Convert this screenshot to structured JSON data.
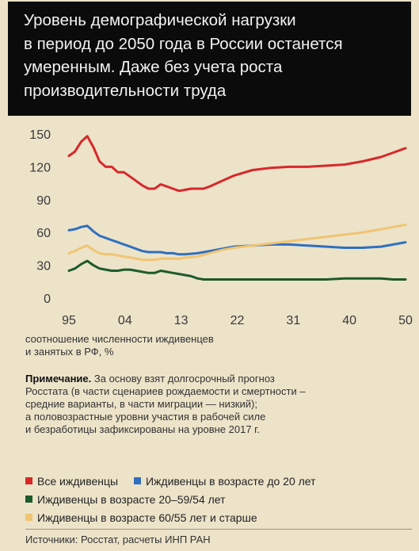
{
  "header": {
    "title_lines": [
      "Уровень демографической нагрузки",
      "в период до 2050 года в России останется",
      "умеренным. Даже без учета роста",
      "производительности труда"
    ]
  },
  "chart_data": {
    "type": "line",
    "x_tick_labels": [
      "95",
      "04",
      "13",
      "22",
      "31",
      "40",
      "50"
    ],
    "y_ticks": [
      0,
      30,
      60,
      90,
      120,
      150
    ],
    "xlim": [
      1995,
      2050
    ],
    "ylim": [
      0,
      150
    ],
    "grid": false,
    "series": [
      {
        "name": "Все иждивенцы",
        "color": "#d8282a",
        "x": [
          1995,
          1996,
          1997,
          1998,
          1999,
          2000,
          2001,
          2002,
          2003,
          2004,
          2005,
          2006,
          2007,
          2008,
          2009,
          2010,
          2011,
          2012,
          2013,
          2014,
          2015,
          2016,
          2017,
          2018,
          2020,
          2022,
          2025,
          2028,
          2031,
          2034,
          2037,
          2040,
          2043,
          2046,
          2048,
          2050
        ],
        "values": [
          130,
          134,
          143,
          148,
          138,
          125,
          120,
          120,
          115,
          115,
          111,
          107,
          103,
          100,
          100,
          104,
          102,
          100,
          98,
          99,
          100,
          100,
          100,
          102,
          107,
          112,
          117,
          119,
          120,
          120,
          121,
          122,
          125,
          129,
          133,
          137
        ]
      },
      {
        "name": "Иждивенцы в возрасте до 20 лет",
        "color": "#2f6fc0",
        "x": [
          1995,
          1996,
          1997,
          1998,
          1999,
          2000,
          2001,
          2002,
          2003,
          2004,
          2005,
          2006,
          2007,
          2008,
          2009,
          2010,
          2011,
          2012,
          2013,
          2014,
          2016,
          2018,
          2020,
          2022,
          2025,
          2028,
          2031,
          2034,
          2037,
          2040,
          2043,
          2046,
          2048,
          2050
        ],
        "values": [
          62,
          63,
          65,
          66,
          61,
          57,
          55,
          53,
          51,
          49,
          47,
          45,
          43,
          42,
          42,
          42,
          41,
          41,
          40,
          40,
          41,
          43,
          45,
          47,
          48,
          49,
          49,
          48,
          47,
          46,
          46,
          47,
          49,
          51
        ]
      },
      {
        "name": "Иждивенцы в возрасте 20–59/54 лет",
        "color": "#1d5a2c",
        "x": [
          1995,
          1996,
          1997,
          1998,
          1999,
          2000,
          2001,
          2002,
          2003,
          2004,
          2005,
          2006,
          2007,
          2008,
          2009,
          2010,
          2011,
          2012,
          2013,
          2014,
          2015,
          2016,
          2017,
          2018,
          2020,
          2022,
          2025,
          2028,
          2031,
          2034,
          2037,
          2040,
          2043,
          2046,
          2048,
          2050
        ],
        "values": [
          25,
          27,
          31,
          34,
          30,
          27,
          26,
          25,
          25,
          26,
          26,
          25,
          24,
          23,
          23,
          25,
          24,
          23,
          22,
          21,
          20,
          18,
          17,
          17,
          17,
          17,
          17,
          17,
          17,
          17,
          17,
          18,
          18,
          18,
          17,
          17
        ]
      },
      {
        "name": "Иждивенцы в возрасте 60/55 лет и старше",
        "color": "#f0c472",
        "x": [
          1995,
          1996,
          1997,
          1998,
          1999,
          2000,
          2001,
          2002,
          2003,
          2004,
          2005,
          2006,
          2007,
          2008,
          2009,
          2010,
          2011,
          2012,
          2013,
          2014,
          2016,
          2018,
          2020,
          2022,
          2025,
          2028,
          2031,
          2034,
          2037,
          2040,
          2043,
          2046,
          2048,
          2050
        ],
        "values": [
          41,
          43,
          46,
          48,
          44,
          41,
          40,
          40,
          39,
          38,
          37,
          36,
          35,
          35,
          35,
          36,
          36,
          36,
          36,
          37,
          38,
          41,
          44,
          46,
          48,
          50,
          52,
          54,
          56,
          58,
          60,
          63,
          65,
          67
        ]
      }
    ]
  },
  "caption": {
    "lines": [
      "соотношение численности иждивенцев",
      "и занятых в РФ, %"
    ]
  },
  "note": {
    "label": "Примечание.",
    "text_first": " За основу взят долгосрочный прогноз",
    "lines": [
      "Росстата (в части сценариев рождаемости и смертности –",
      "средние варианты, в части миграции — низкий);",
      "а половозрастные уровни участия в рабочей силе",
      "и безработицы зафиксированы на уровне 2017 г."
    ]
  },
  "legend": {
    "items": [
      {
        "label": "Все иждивенцы",
        "color": "#d8282a"
      },
      {
        "label": "Иждивенцы в возрасте до 20 лет",
        "color": "#2f6fc0"
      },
      {
        "label": "Иждивенцы в возрасте 20–59/54 лет",
        "color": "#1d5a2c"
      },
      {
        "label": "Иждивенцы в возрасте 60/55 лет и старше",
        "color": "#f0c472"
      }
    ]
  },
  "source": {
    "text": "Источники: Росстат, расчеты ИНП РАН"
  }
}
